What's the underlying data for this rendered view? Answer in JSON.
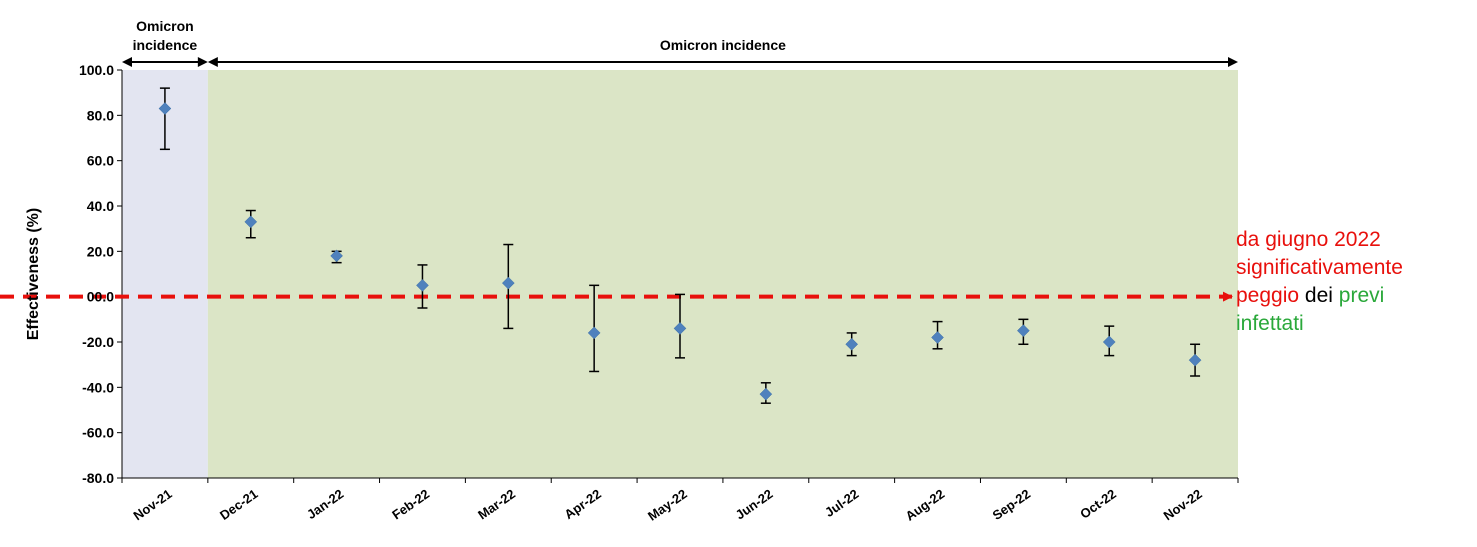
{
  "chart_data": {
    "type": "scatter",
    "ylabel": "Effectiveness (%)",
    "xlabel": "",
    "categories": [
      "Nov-21",
      "Dec-21",
      "Jan-22",
      "Feb-22",
      "Mar-22",
      "Apr-22",
      "May-22",
      "Jun-22",
      "Jul-22",
      "Aug-22",
      "Sep-22",
      "Oct-22",
      "Nov-22"
    ],
    "series": [
      {
        "values": [
          83.0,
          33.0,
          18.0,
          5.0,
          6.0,
          -16.0,
          -14.0,
          -43.0,
          -21.0,
          -18.0,
          -15.0,
          -20.0,
          -28.0
        ],
        "error_low": [
          65.0,
          26.0,
          15.0,
          -5.0,
          -14.0,
          -33.0,
          -27.0,
          -47.0,
          -26.0,
          -23.0,
          -21.0,
          -26.0,
          -35.0
        ],
        "error_high": [
          92.0,
          38.0,
          20.0,
          14.0,
          23.0,
          5.0,
          1.0,
          -38.0,
          -16.0,
          -11.0,
          -10.0,
          -13.0,
          -21.0
        ]
      }
    ],
    "ylim": [
      -80,
      100
    ],
    "yticks": [
      "100.0",
      "80.0",
      "60.0",
      "40.0",
      "20.0",
      "00.0",
      "-20.0",
      "-40.0",
      "-60.0",
      "-80.0"
    ],
    "yticks_values": [
      100,
      80,
      60,
      40,
      20,
      0,
      -20,
      -40,
      -60,
      -80
    ],
    "grid": false,
    "marker_color": "#4f81bd",
    "errorbar_color": "#000000",
    "regions": [
      {
        "label_lines": [
          "",
          "Omicron",
          "incidence"
        ],
        "from_index": 0,
        "to_index": 0,
        "color": "#e3e5f1"
      },
      {
        "label": "Omicron incidence",
        "from_index": 1,
        "to_index": 12,
        "color": "#dbe5c6"
      }
    ],
    "reference_line": {
      "y": 0,
      "color": "#e8100c",
      "style": "dashed"
    }
  },
  "annotation": {
    "line1": "da giugno 2022",
    "line2": "significativamente",
    "line3_a": "peggio",
    "line3_b": " dei ",
    "line3_c": "previ",
    "line4": "infettati",
    "color_red": "#e8100c",
    "color_green": "#2aa83a"
  }
}
